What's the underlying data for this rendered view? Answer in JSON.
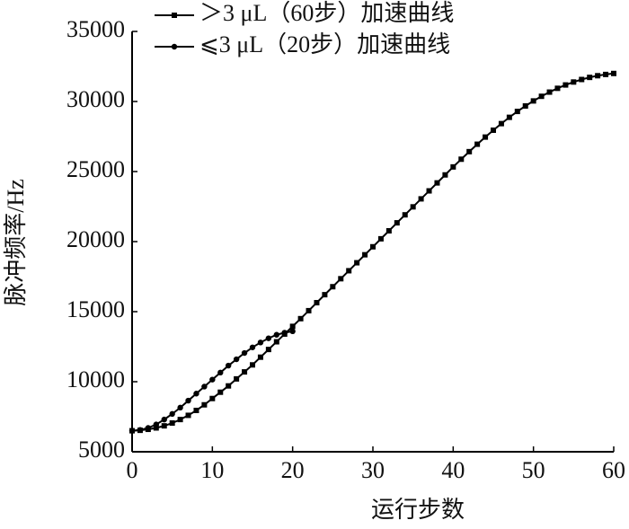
{
  "chart_data": {
    "type": "line",
    "x_label": "运行步数",
    "y_label": "脉冲频率/Hz",
    "xlim": [
      0,
      60
    ],
    "xticks": [
      0,
      10,
      20,
      30,
      40,
      50,
      60
    ],
    "ylim": [
      5000,
      35000
    ],
    "yticks": [
      5000,
      10000,
      15000,
      20000,
      25000,
      30000,
      35000
    ],
    "grid": false,
    "legend": "upper left",
    "series": [
      {
        "name": "＞3 μL（60步）加速曲线",
        "color": "#000000",
        "marker": "square",
        "x": [
          0,
          1,
          2,
          3,
          4,
          5,
          6,
          7,
          8,
          9,
          10,
          11,
          12,
          13,
          14,
          15,
          16,
          17,
          18,
          19,
          20,
          21,
          22,
          23,
          24,
          25,
          26,
          27,
          28,
          29,
          30,
          31,
          32,
          33,
          34,
          35,
          36,
          37,
          38,
          39,
          40,
          41,
          42,
          43,
          44,
          45,
          46,
          47,
          48,
          49,
          50,
          51,
          52,
          53,
          54,
          55,
          56,
          57,
          58,
          59,
          60
        ],
        "values": [
          6500,
          6530,
          6600,
          6700,
          6850,
          7050,
          7300,
          7600,
          7950,
          8350,
          8800,
          9250,
          9700,
          10200,
          10700,
          11200,
          11750,
          12300,
          12850,
          13400,
          13950,
          14500,
          15070,
          15640,
          16210,
          16780,
          17350,
          17920,
          18490,
          19060,
          19630,
          20200,
          20770,
          21340,
          21910,
          22480,
          23050,
          23620,
          24190,
          24760,
          25330,
          25880,
          26420,
          26950,
          27460,
          27950,
          28420,
          28870,
          29290,
          29680,
          30040,
          30370,
          30670,
          30940,
          31180,
          31390,
          31570,
          31720,
          31840,
          31930,
          32000
        ]
      },
      {
        "name": "⩽3 μL（20步）加速曲线",
        "color": "#000000",
        "marker": "circle",
        "x": [
          0,
          1,
          2,
          3,
          4,
          5,
          6,
          7,
          8,
          9,
          10,
          11,
          12,
          13,
          14,
          15,
          16,
          17,
          18,
          19,
          20
        ],
        "values": [
          6500,
          6560,
          6700,
          6950,
          7300,
          7700,
          8150,
          8650,
          9150,
          9650,
          10150,
          10650,
          11150,
          11600,
          12050,
          12450,
          12800,
          13100,
          13350,
          13500,
          13600
        ]
      }
    ]
  }
}
